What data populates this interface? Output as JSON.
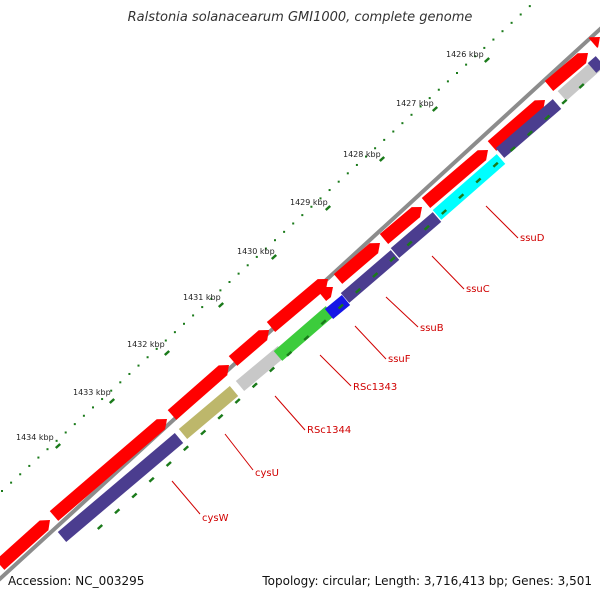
{
  "title": "Ralstonia solanacearum GMI1000, complete genome",
  "footer": {
    "accession": "Accession: NC_003295",
    "summary": "Topology: circular; Length: 3,716,413 bp; Genes: 3,501"
  },
  "colors": {
    "backbone": "#8c8c8c",
    "forward_gene": "#ff0000",
    "reverse_gene": "#4b3d8f",
    "ssuD": "#00ffff",
    "ssuF": "#1616e6",
    "RSc1343": "#3ccc3c",
    "RSc1344": "#c8c8c8",
    "cysU": "#bdb76b",
    "other_gray": "#c8c8c8",
    "tick": "#1a7a1a",
    "label": "#d00000"
  },
  "scale_labels": [
    "1426 kbp",
    "1427 kbp",
    "1428 kbp",
    "1429 kbp",
    "1430 kbp",
    "1431 kbp",
    "1432 kbp",
    "1433 kbp",
    "1434 kbp"
  ],
  "gene_labels": [
    "ssuD",
    "ssuC",
    "ssuB",
    "ssuF",
    "RSc1343",
    "RSc1344",
    "cysU",
    "cysW"
  ]
}
